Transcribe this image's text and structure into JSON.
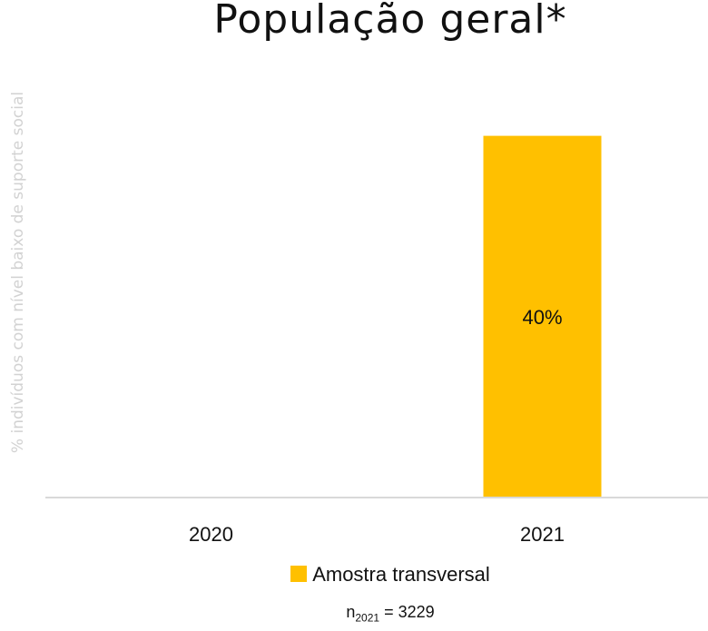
{
  "chart_data": {
    "type": "bar",
    "title": "População geral*",
    "ylabel": "% indivíduos com nível baixo de suporte social",
    "xlabel": "",
    "categories": [
      "2020",
      "2021"
    ],
    "series": [
      {
        "name": "Amostra transversal",
        "color": "#FFC000",
        "values": [
          null,
          40
        ]
      }
    ],
    "data_labels": [
      "",
      "40%"
    ],
    "ylim": [
      0,
      50
    ],
    "grid": false,
    "legend_position": "bottom"
  },
  "footnote": {
    "n_prefix": "n",
    "n_subscript": "2021",
    "n_value": "= 3229"
  }
}
